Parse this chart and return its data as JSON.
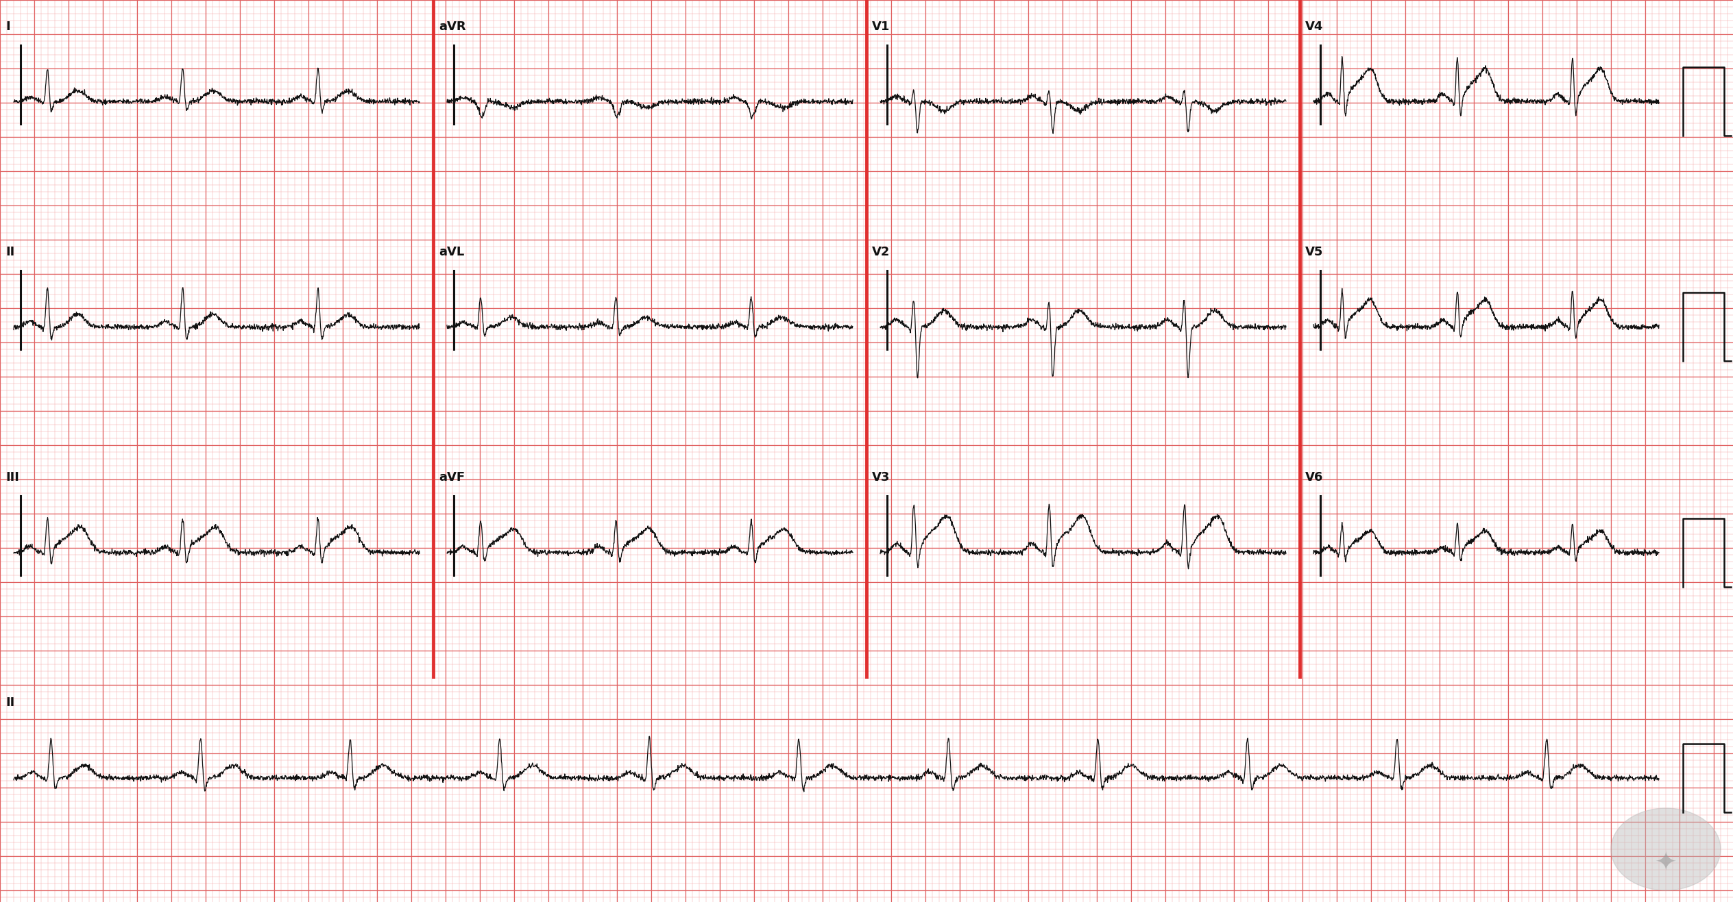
{
  "bg_color": "#ffffff",
  "minor_grid_color": "#f4aaaa",
  "major_grid_color": "#e06060",
  "separator_color": "#e03030",
  "ecg_color": "#111111",
  "label_color": "#111111",
  "figsize": [
    25.28,
    13.17
  ],
  "dpi": 100,
  "lead_labels_row0": [
    "I",
    "aVR",
    "V1",
    "V4"
  ],
  "lead_labels_row1": [
    "II",
    "aVL",
    "V2",
    "V5"
  ],
  "lead_labels_row2": [
    "III",
    "aVF",
    "V3",
    "V6"
  ],
  "lead_labels_row3": [
    "II"
  ],
  "n_rows": 4,
  "n_cols": 4
}
